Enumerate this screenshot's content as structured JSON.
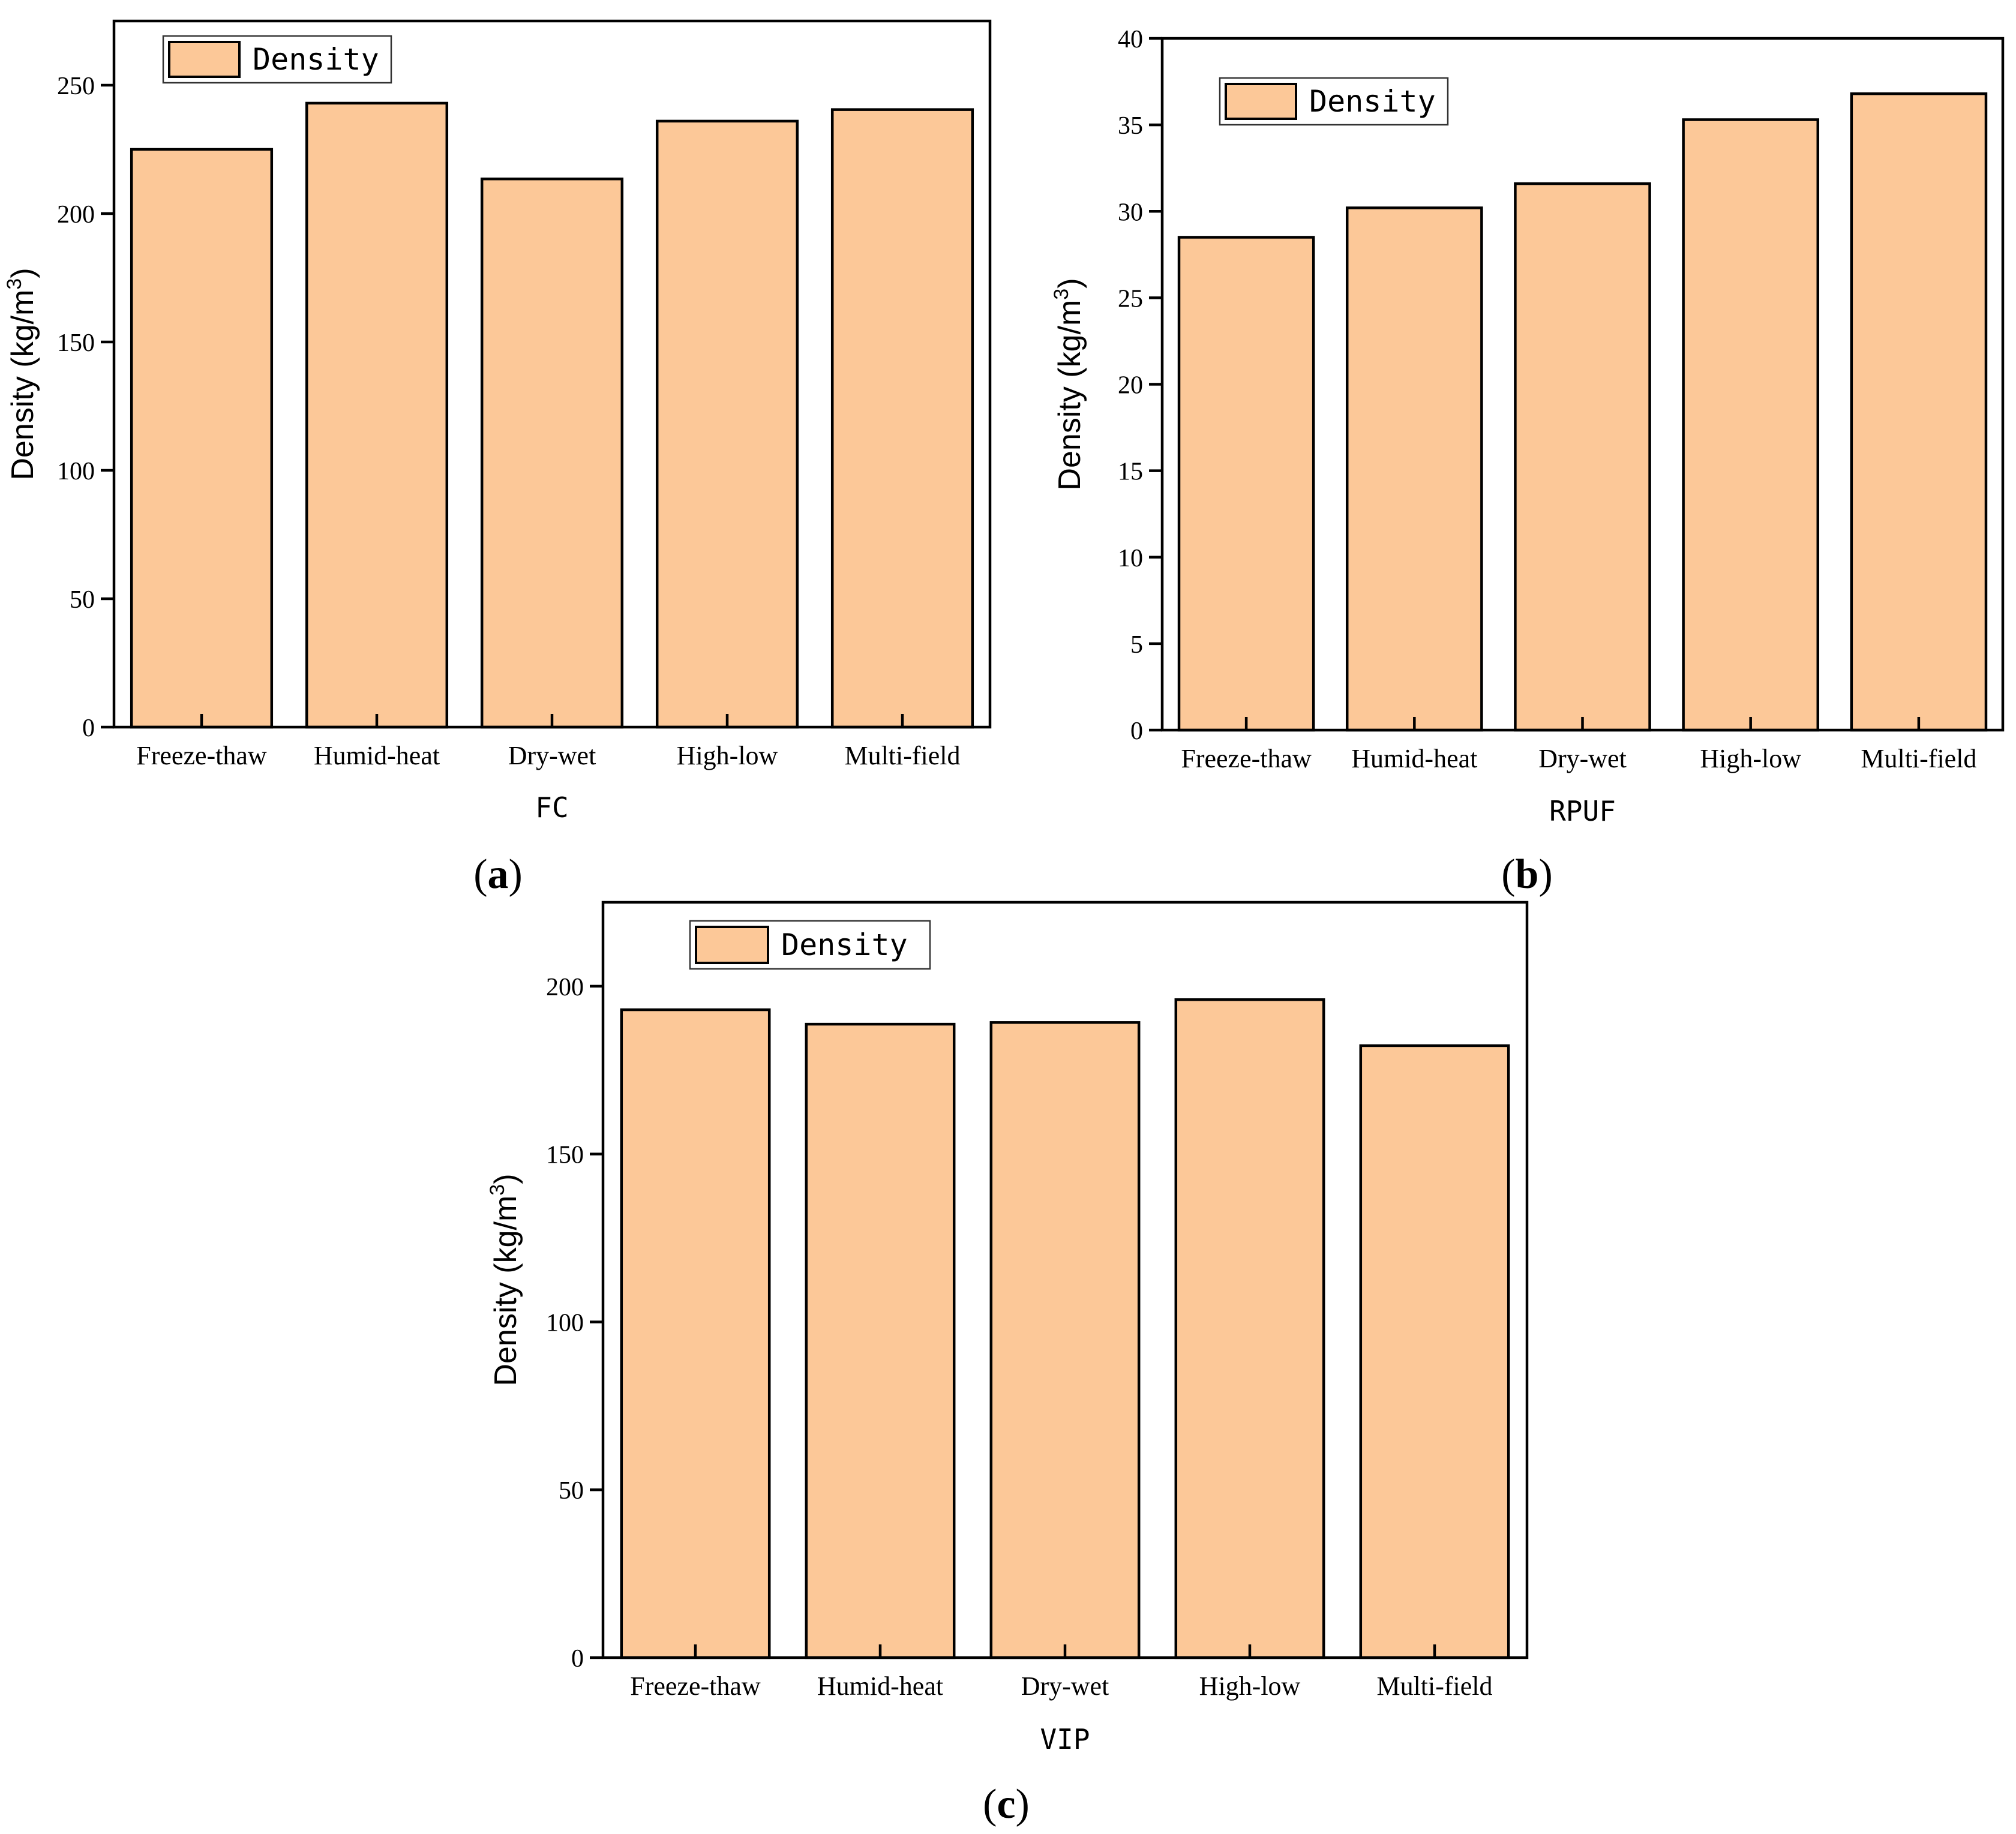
{
  "colors": {
    "bar_fill": "#FCC898",
    "stroke": "#000000"
  },
  "chart_data": [
    {
      "id": "a",
      "type": "bar",
      "title": "",
      "panel_label": "a",
      "xlabel": "FC",
      "ylabel_prefix": "Density (kg/m",
      "ylabel_sup": "3",
      "ylabel_suffix": ")",
      "legend": "Density",
      "legend_position": "top-left",
      "categories": [
        "Freeze-thaw",
        "Humid-heat",
        "Dry-wet",
        "High-low",
        "Multi-field"
      ],
      "values": [
        225,
        243,
        213.5,
        236,
        240.5
      ],
      "ylim": [
        0,
        275
      ],
      "yticks": [
        0,
        50,
        100,
        150,
        200,
        250
      ]
    },
    {
      "id": "b",
      "type": "bar",
      "title": "",
      "panel_label": "b",
      "xlabel": "RPUF",
      "ylabel_prefix": "Density (kg/m",
      "ylabel_sup": "3",
      "ylabel_suffix": ")",
      "legend": "Density",
      "legend_position": "top-left",
      "categories": [
        "Freeze-thaw",
        "Humid-heat",
        "Dry-wet",
        "High-low",
        "Multi-field"
      ],
      "values": [
        28.5,
        30.2,
        31.6,
        35.3,
        36.8
      ],
      "ylim": [
        0,
        40
      ],
      "yticks": [
        0,
        5,
        10,
        15,
        20,
        25,
        30,
        35,
        40
      ]
    },
    {
      "id": "c",
      "type": "bar",
      "title": "",
      "panel_label": "c",
      "xlabel": "VIP",
      "ylabel_prefix": "Density (kg/m",
      "ylabel_sup": "3",
      "ylabel_suffix": ")",
      "legend": "Density",
      "legend_position": "top-left",
      "categories": [
        "Freeze-thaw",
        "Humid-heat",
        "Dry-wet",
        "High-low",
        "Multi-field"
      ],
      "values": [
        193,
        188.7,
        189.2,
        196,
        182.3
      ],
      "ylim": [
        0,
        225
      ],
      "yticks": [
        0,
        50,
        100,
        150,
        200
      ]
    }
  ]
}
